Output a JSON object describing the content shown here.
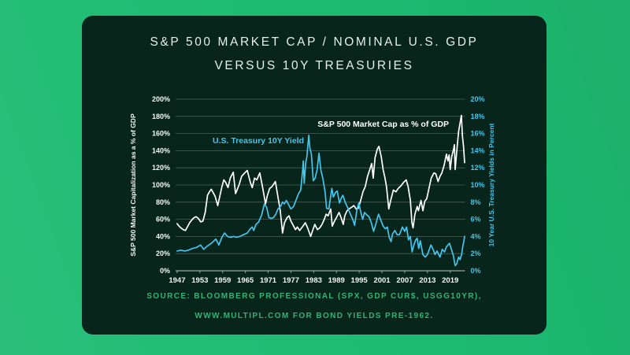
{
  "title": {
    "line1": "S&P 500 MARKET CAP / NOMINAL U.S. GDP",
    "line2": "VERSUS 10Y TREASURIES"
  },
  "source": {
    "line1": "SOURCE: BLOOMBERG PROFESSIONAL (SPX, GDP CUR$, USGG10YR),",
    "line2": "WWW.MULTIPL.COM FOR BOND YIELDS PRE-1962."
  },
  "colors": {
    "background": "#1dbb72",
    "card": "#07251a",
    "title": "#e6efe9",
    "grid": "#4d6156",
    "axis_line": "#b7c3bc",
    "left_axis": "#f3f7f4",
    "right_axis": "#45c4ec",
    "series_sp500": "#ffffff",
    "series_treasury": "#45c4ec",
    "source": "#31b476"
  },
  "chart_data": {
    "type": "line",
    "title": "S&P 500 Market Cap / Nominal U.S. GDP versus 10Y Treasuries",
    "grid": true,
    "x_range": [
      1946.6,
      2022.9
    ],
    "x_ticks": [
      1947,
      1953,
      1959,
      1965,
      1971,
      1977,
      1983,
      1989,
      1995,
      2001,
      2007,
      2013,
      2019
    ],
    "x_tick_labels": [
      "1947",
      "1953",
      "1959",
      "1965",
      "1971",
      "1977",
      "1983",
      "1989",
      "1995",
      "2001",
      "2007",
      "2013",
      "2019"
    ],
    "left_axis": {
      "label": "S&P 500 Market Capitalization as a % of GDP",
      "range": [
        0,
        200
      ],
      "tick_step": 20,
      "tick_labels": [
        "0%",
        "20%",
        "40%",
        "60%",
        "80%",
        "100%",
        "120%",
        "140%",
        "160%",
        "180%",
        "200%"
      ]
    },
    "right_axis": {
      "label": "10 Year U.S. Treasury Yields in Percent",
      "range": [
        0,
        20
      ],
      "tick_step": 2,
      "tick_labels": [
        "0%",
        "2%",
        "4%",
        "6%",
        "8%",
        "10%",
        "12%",
        "14%",
        "16%",
        "18%",
        "20%"
      ]
    },
    "series": [
      {
        "name": "S&P 500 Market Cap as % of GDP",
        "axis": "left",
        "color_key": "series_sp500",
        "points": [
          [
            1947,
            55
          ],
          [
            1947.5,
            52
          ],
          [
            1948,
            50
          ],
          [
            1948.6,
            48
          ],
          [
            1949.2,
            47
          ],
          [
            1949.7,
            51
          ],
          [
            1950.3,
            56
          ],
          [
            1951,
            60
          ],
          [
            1951.5,
            62
          ],
          [
            1952,
            63
          ],
          [
            1952.6,
            61
          ],
          [
            1953.2,
            57
          ],
          [
            1953.8,
            58
          ],
          [
            1954.4,
            68
          ],
          [
            1955,
            88
          ],
          [
            1955.5,
            92
          ],
          [
            1956,
            95
          ],
          [
            1956.5,
            91
          ],
          [
            1957,
            87
          ],
          [
            1957.7,
            76
          ],
          [
            1958.2,
            86
          ],
          [
            1958.8,
            98
          ],
          [
            1959.3,
            106
          ],
          [
            1959.8,
            103
          ],
          [
            1960.4,
            97
          ],
          [
            1961,
            108
          ],
          [
            1961.8,
            115
          ],
          [
            1962.4,
            90
          ],
          [
            1962.8,
            94
          ],
          [
            1963.4,
            101
          ],
          [
            1964,
            110
          ],
          [
            1964.8,
            114
          ],
          [
            1965.5,
            117
          ],
          [
            1966.3,
            103
          ],
          [
            1966.8,
            97
          ],
          [
            1967.4,
            108
          ],
          [
            1968,
            106
          ],
          [
            1968.8,
            114
          ],
          [
            1969.5,
            98
          ],
          [
            1970.3,
            78
          ],
          [
            1970.8,
            88
          ],
          [
            1971.4,
            96
          ],
          [
            1972,
            98
          ],
          [
            1972.9,
            104
          ],
          [
            1973.5,
            88
          ],
          [
            1974.2,
            70
          ],
          [
            1974.8,
            44
          ],
          [
            1975.3,
            56
          ],
          [
            1976,
            62
          ],
          [
            1976.5,
            64
          ],
          [
            1977,
            58
          ],
          [
            1977.6,
            53
          ],
          [
            1978.2,
            48
          ],
          [
            1978.7,
            51
          ],
          [
            1979.3,
            47
          ],
          [
            1980,
            51
          ],
          [
            1980.8,
            56
          ],
          [
            1981.4,
            50
          ],
          [
            1982.2,
            40
          ],
          [
            1982.8,
            48
          ],
          [
            1983.3,
            54
          ],
          [
            1984,
            48
          ],
          [
            1984.6,
            50
          ],
          [
            1985.2,
            54
          ],
          [
            1985.8,
            60
          ],
          [
            1986.3,
            66
          ],
          [
            1986.8,
            64
          ],
          [
            1987.5,
            72
          ],
          [
            1987.9,
            52
          ],
          [
            1988.4,
            57
          ],
          [
            1989,
            62
          ],
          [
            1989.7,
            68
          ],
          [
            1990.3,
            61
          ],
          [
            1990.8,
            54
          ],
          [
            1991.2,
            64
          ],
          [
            1991.8,
            70
          ],
          [
            1992.3,
            72
          ],
          [
            1993,
            74
          ],
          [
            1993.6,
            76
          ],
          [
            1994.2,
            72
          ],
          [
            1994.8,
            73
          ],
          [
            1995.4,
            82
          ],
          [
            1996,
            92
          ],
          [
            1996.6,
            98
          ],
          [
            1997.2,
            110
          ],
          [
            1997.8,
            118
          ],
          [
            1998.3,
            125
          ],
          [
            1998.7,
            108
          ],
          [
            1999.2,
            132
          ],
          [
            1999.8,
            142
          ],
          [
            2000.2,
            145
          ],
          [
            2000.8,
            133
          ],
          [
            2001.3,
            118
          ],
          [
            2001.8,
            108
          ],
          [
            2002.2,
            98
          ],
          [
            2002.8,
            72
          ],
          [
            2003.3,
            82
          ],
          [
            2004,
            94
          ],
          [
            2004.7,
            92
          ],
          [
            2005.3,
            96
          ],
          [
            2006,
            99
          ],
          [
            2006.7,
            103
          ],
          [
            2007.4,
            106
          ],
          [
            2007.9,
            98
          ],
          [
            2008.5,
            82
          ],
          [
            2008.9,
            56
          ],
          [
            2009.2,
            50
          ],
          [
            2009.7,
            66
          ],
          [
            2010.3,
            75
          ],
          [
            2010.6,
            70
          ],
          [
            2011.3,
            82
          ],
          [
            2011.8,
            70
          ],
          [
            2012.3,
            81
          ],
          [
            2012.8,
            84
          ],
          [
            2013.4,
            96
          ],
          [
            2014,
            108
          ],
          [
            2014.7,
            114
          ],
          [
            2015.2,
            113
          ],
          [
            2015.8,
            104
          ],
          [
            2016.3,
            110
          ],
          [
            2016.8,
            114
          ],
          [
            2017.4,
            123
          ],
          [
            2018,
            136
          ],
          [
            2018.4,
            128
          ],
          [
            2018.7,
            135
          ],
          [
            2019,
            118
          ],
          [
            2019.4,
            133
          ],
          [
            2019.9,
            142
          ],
          [
            2020.1,
            147
          ],
          [
            2020.3,
            118
          ],
          [
            2020.7,
            138
          ],
          [
            2021.2,
            162
          ],
          [
            2021.6,
            172
          ],
          [
            2021.95,
            181
          ],
          [
            2022.2,
            158
          ],
          [
            2022.5,
            145
          ],
          [
            2022.8,
            126
          ]
        ]
      },
      {
        "name": "U.S. Treasury 10Y Yield",
        "axis": "right",
        "color_key": "series_treasury",
        "points": [
          [
            1947,
            2.3
          ],
          [
            1948,
            2.4
          ],
          [
            1949,
            2.3
          ],
          [
            1950,
            2.4
          ],
          [
            1951,
            2.6
          ],
          [
            1952,
            2.7
          ],
          [
            1953.2,
            3.0
          ],
          [
            1954,
            2.5
          ],
          [
            1955,
            2.9
          ],
          [
            1956,
            3.2
          ],
          [
            1957.2,
            3.7
          ],
          [
            1958,
            3.0
          ],
          [
            1958.8,
            3.9
          ],
          [
            1959.5,
            4.4
          ],
          [
            1960.3,
            4.0
          ],
          [
            1961,
            3.9
          ],
          [
            1962,
            4.0
          ],
          [
            1962.6,
            3.9
          ],
          [
            1963.5,
            4.0
          ],
          [
            1964.5,
            4.2
          ],
          [
            1965.5,
            4.4
          ],
          [
            1966.3,
            4.9
          ],
          [
            1966.8,
            5.1
          ],
          [
            1967.2,
            4.7
          ],
          [
            1967.8,
            5.4
          ],
          [
            1968.5,
            5.7
          ],
          [
            1969.3,
            6.5
          ],
          [
            1970,
            7.8
          ],
          [
            1970.6,
            7.4
          ],
          [
            1971.2,
            6.2
          ],
          [
            1971.8,
            6.1
          ],
          [
            1972.4,
            6.2
          ],
          [
            1973,
            6.6
          ],
          [
            1973.6,
            7.2
          ],
          [
            1974.4,
            7.6
          ],
          [
            1974.8,
            8.0
          ],
          [
            1975.3,
            7.8
          ],
          [
            1975.8,
            8.2
          ],
          [
            1976.4,
            7.7
          ],
          [
            1977,
            7.2
          ],
          [
            1977.7,
            7.5
          ],
          [
            1978.4,
            8.3
          ],
          [
            1979,
            9.0
          ],
          [
            1979.6,
            9.4
          ],
          [
            1980.1,
            11.8
          ],
          [
            1980.25,
            12.8
          ],
          [
            1980.5,
            10.2
          ],
          [
            1980.9,
            12.6
          ],
          [
            1981.2,
            13.3
          ],
          [
            1981.7,
            15.8
          ],
          [
            1982,
            14.3
          ],
          [
            1982.4,
            13.6
          ],
          [
            1982.9,
            10.5
          ],
          [
            1983.4,
            10.8
          ],
          [
            1983.9,
            11.8
          ],
          [
            1984.4,
            13.7
          ],
          [
            1984.9,
            11.7
          ],
          [
            1985.4,
            10.8
          ],
          [
            1986,
            9.2
          ],
          [
            1986.4,
            7.3
          ],
          [
            1987,
            7.2
          ],
          [
            1987.8,
            9.6
          ],
          [
            1988.2,
            8.6
          ],
          [
            1988.7,
            9.1
          ],
          [
            1989.2,
            9.3
          ],
          [
            1989.8,
            7.9
          ],
          [
            1990.3,
            8.5
          ],
          [
            1990.7,
            8.8
          ],
          [
            1991.3,
            8.0
          ],
          [
            1992,
            7.3
          ],
          [
            1992.7,
            6.6
          ],
          [
            1993.3,
            6.0
          ],
          [
            1993.8,
            5.3
          ],
          [
            1994.4,
            7.1
          ],
          [
            1994.9,
            7.9
          ],
          [
            1995.4,
            6.9
          ],
          [
            1995.9,
            6.0
          ],
          [
            1996.4,
            6.8
          ],
          [
            1997,
            6.5
          ],
          [
            1997.6,
            6.3
          ],
          [
            1998.2,
            5.6
          ],
          [
            1998.8,
            4.6
          ],
          [
            1999.3,
            5.3
          ],
          [
            1999.9,
            6.3
          ],
          [
            2000.1,
            6.6
          ],
          [
            2000.7,
            5.9
          ],
          [
            2001.3,
            5.2
          ],
          [
            2001.9,
            4.9
          ],
          [
            2002.4,
            5.1
          ],
          [
            2002.9,
            3.9
          ],
          [
            2003.4,
            3.4
          ],
          [
            2003.8,
            4.3
          ],
          [
            2004.4,
            4.7
          ],
          [
            2005,
            4.2
          ],
          [
            2005.6,
            4.2
          ],
          [
            2006.4,
            5.1
          ],
          [
            2007,
            4.6
          ],
          [
            2007.5,
            5.1
          ],
          [
            2008,
            3.6
          ],
          [
            2008.5,
            4.0
          ],
          [
            2008.95,
            2.2
          ],
          [
            2009.4,
            3.0
          ],
          [
            2009.9,
            3.6
          ],
          [
            2010.3,
            3.8
          ],
          [
            2010.7,
            2.6
          ],
          [
            2011.1,
            3.5
          ],
          [
            2011.8,
            1.9
          ],
          [
            2012.4,
            1.6
          ],
          [
            2013,
            1.9
          ],
          [
            2013.9,
            3.0
          ],
          [
            2014.5,
            2.5
          ],
          [
            2015,
            1.9
          ],
          [
            2015.5,
            2.3
          ],
          [
            2016.3,
            1.6
          ],
          [
            2016.9,
            2.5
          ],
          [
            2017.5,
            2.2
          ],
          [
            2018,
            2.8
          ],
          [
            2018.8,
            3.2
          ],
          [
            2019.3,
            2.5
          ],
          [
            2019.8,
            1.8
          ],
          [
            2020.3,
            0.6
          ],
          [
            2020.7,
            0.8
          ],
          [
            2021.2,
            1.6
          ],
          [
            2021.6,
            1.3
          ],
          [
            2022,
            1.9
          ],
          [
            2022.3,
            2.8
          ],
          [
            2022.6,
            3.5
          ],
          [
            2022.8,
            4.0
          ]
        ]
      }
    ]
  }
}
